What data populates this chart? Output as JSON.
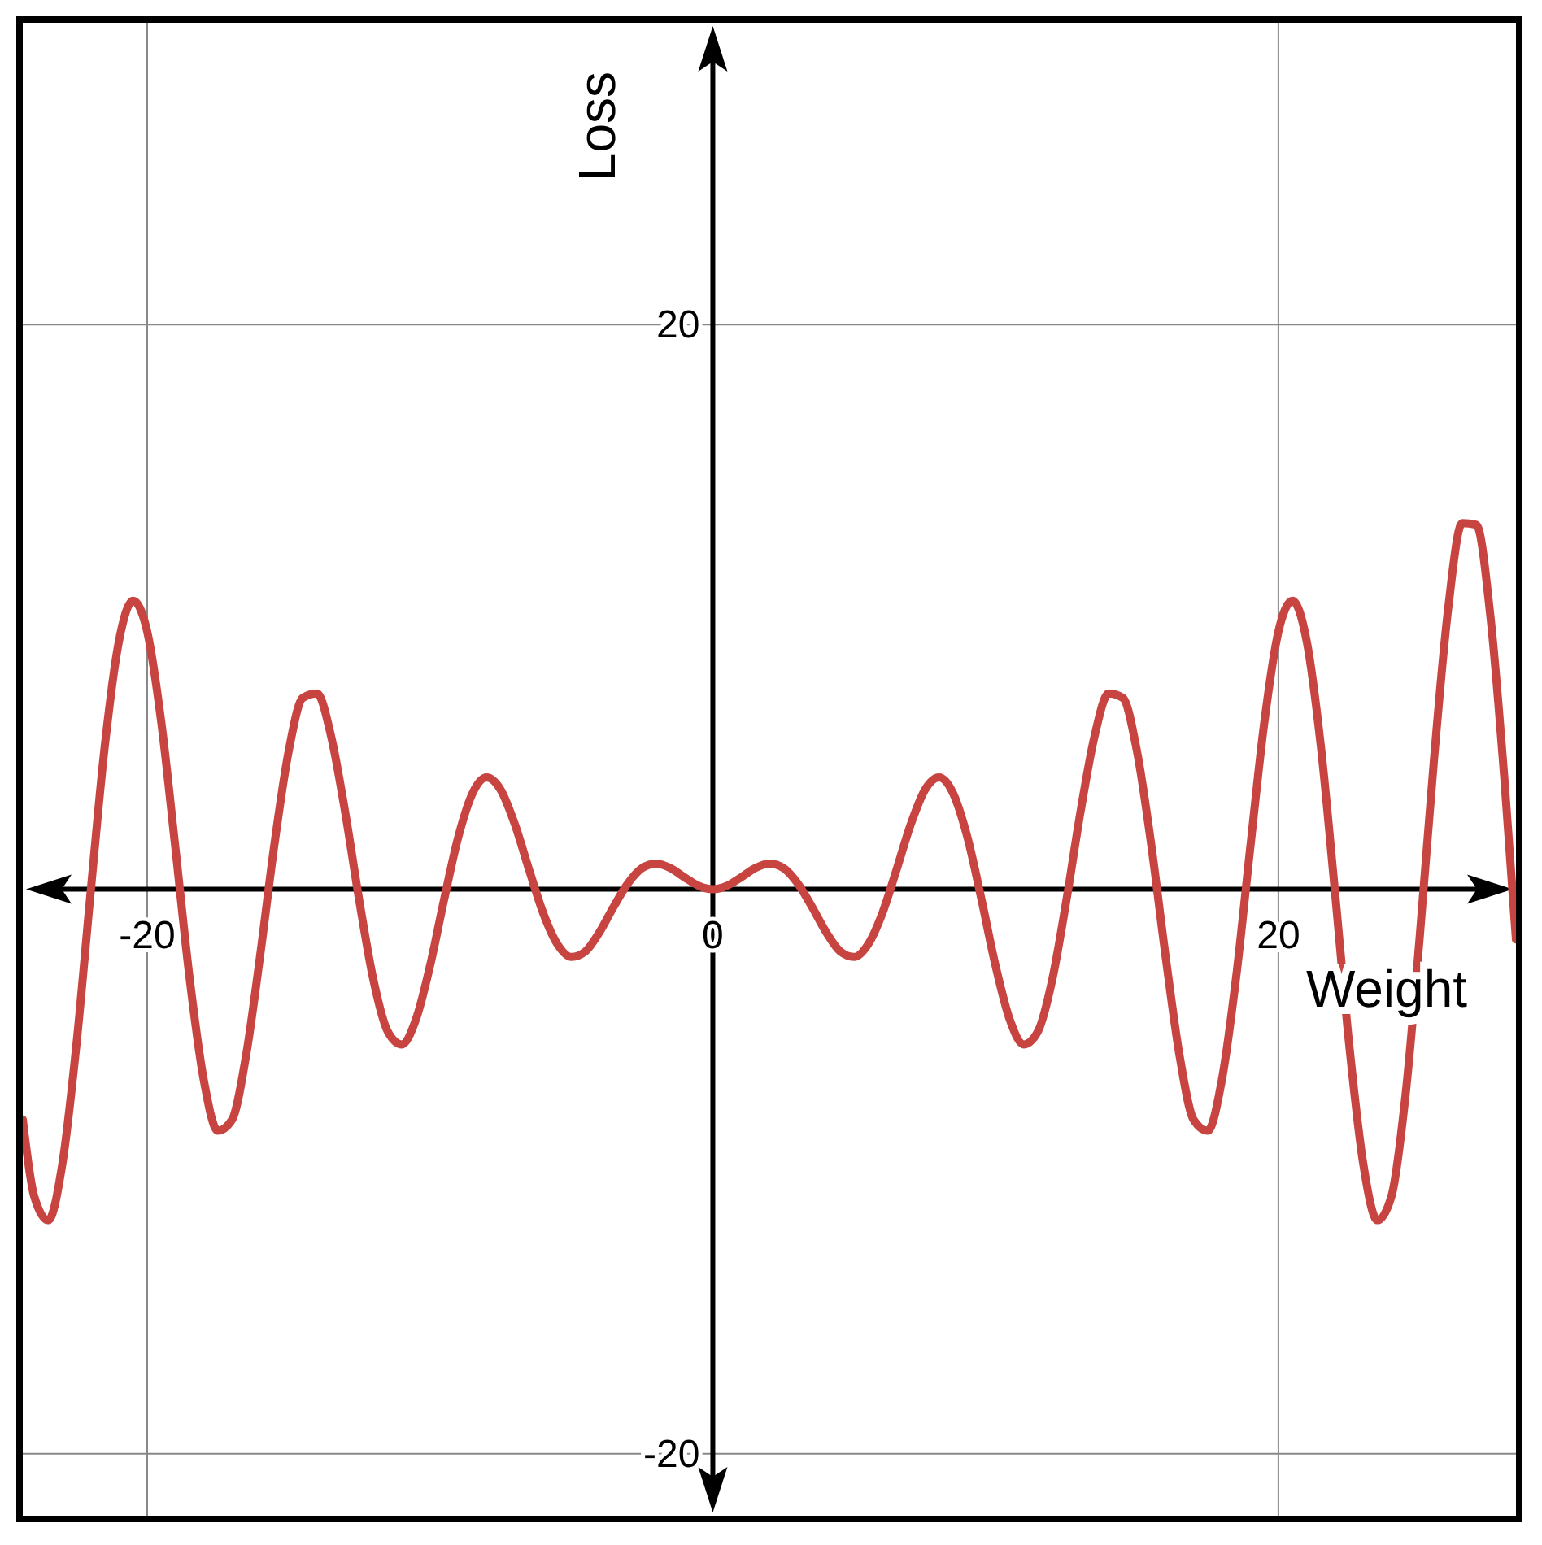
{
  "chart_data": {
    "type": "line",
    "xlabel": "Weight",
    "ylabel": "Loss",
    "xlim": [
      -24.4,
      28.4
    ],
    "ylim": [
      -22.2,
      30.7
    ],
    "xticks": [
      -20,
      0,
      20
    ],
    "yticks": [
      -20,
      20
    ],
    "grid": true,
    "marker": "none",
    "line_style": "solid",
    "series": [
      {
        "color": "#c74440",
        "x": [
          -24.4,
          -24,
          -23.5,
          -23,
          -22.5,
          -22,
          -21.5,
          -21,
          -20.5,
          -20,
          -19.5,
          -19,
          -18.5,
          -18,
          -17.5,
          -17,
          -16.5,
          -16,
          -15.5,
          -15,
          -14.5,
          -14,
          -13.5,
          -13,
          -12.5,
          -12,
          -11.5,
          -11,
          -10.5,
          -10,
          -9.5,
          -9,
          -8.5,
          -8,
          -7.5,
          -7,
          -6.5,
          -6,
          -5.5,
          -5,
          -4.5,
          -4,
          -3.5,
          -3,
          -2.5,
          -2,
          -1.5,
          -1,
          -0.5,
          0,
          0.5,
          1,
          1.5,
          2,
          2.5,
          3,
          3.5,
          4,
          4.5,
          5,
          5.5,
          6,
          6.5,
          7,
          7.5,
          8,
          8.5,
          9,
          9.5,
          10,
          10.5,
          11,
          11.5,
          12,
          12.5,
          13,
          13.5,
          14,
          14.5,
          15,
          15.5,
          16,
          16.5,
          17,
          17.5,
          18,
          18.5,
          19,
          19.5,
          20,
          20.5,
          21,
          21.5,
          22,
          22.5,
          23,
          23.5,
          24,
          24.5,
          25,
          25.5,
          26,
          26.5,
          27,
          27.5,
          28,
          28.4
        ],
        "values": [
          -8.16,
          -10.87,
          -11.73,
          -9.73,
          -5.48,
          -0.1,
          5.07,
          8.79,
          10.22,
          9.13,
          5.9,
          1.43,
          -3.16,
          -6.76,
          -8.56,
          -8.17,
          -5.87,
          -2.3,
          1.6,
          4.88,
          6.78,
          6.94,
          5.43,
          2.73,
          -0.41,
          -3.22,
          -5.03,
          -5.5,
          -4.62,
          -2.72,
          -0.36,
          1.85,
          3.39,
          3.96,
          3.52,
          2.3,
          0.7,
          -0.84,
          -1.94,
          -2.4,
          -2.2,
          -1.51,
          -0.61,
          0.21,
          0.75,
          0.91,
          0.75,
          0.42,
          0.12,
          0,
          0.12,
          0.42,
          0.75,
          0.91,
          0.75,
          0.21,
          -0.61,
          -1.51,
          -2.2,
          -2.4,
          -1.94,
          -0.84,
          0.7,
          2.3,
          3.52,
          3.96,
          3.39,
          1.85,
          -0.36,
          -2.72,
          -4.62,
          -5.5,
          -5.03,
          -3.22,
          -0.41,
          2.73,
          5.43,
          6.94,
          6.78,
          4.88,
          1.6,
          -2.3,
          -5.87,
          -8.17,
          -8.56,
          -6.76,
          -3.16,
          1.43,
          5.9,
          9.13,
          10.22,
          8.79,
          5.07,
          -0.1,
          -5.48,
          -9.73,
          -11.73,
          -10.87,
          -7.25,
          -1.65,
          4.58,
          9.92,
          12.97,
          12.91,
          9.63,
          3.78,
          -1.78
        ]
      }
    ]
  }
}
